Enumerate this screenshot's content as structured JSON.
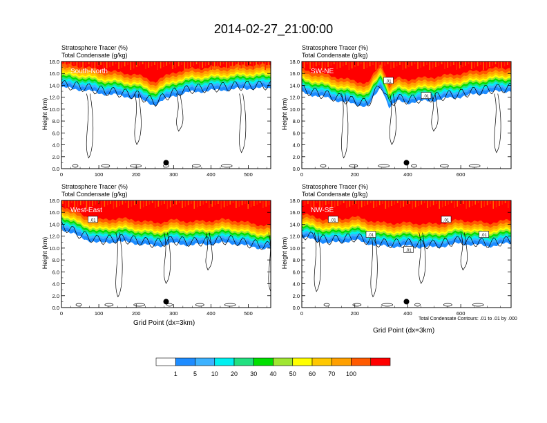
{
  "title": "2014-02-27_21:00:00",
  "panel_title_line1": "Stratosphere Tracer   (%)",
  "panel_title_line2": "Total Condensate   (g/kg)",
  "ylabel": "Height (km)",
  "xlabel": "Grid Point (dx=3km)",
  "contour_note": "Total Condensate Contours: .01 to .01 by .000",
  "colorbar": {
    "colors": [
      "#ffffff",
      "#1e8cff",
      "#3db2ff",
      "#00f0f0",
      "#22e080",
      "#00e000",
      "#a0e632",
      "#ffff00",
      "#ffc800",
      "#ffa000",
      "#ff5a00",
      "#ff0000"
    ],
    "labels": [
      "1",
      "5",
      "10",
      "20",
      "30",
      "40",
      "50",
      "60",
      "70",
      "100"
    ]
  },
  "chart_data": [
    {
      "type": "heatmap",
      "panel": "South-North",
      "xlim": [
        0,
        560
      ],
      "xticks": [
        0,
        100,
        200,
        300,
        400,
        500
      ],
      "ylim": [
        0,
        18
      ],
      "yticks": [
        "0.0",
        "2.0",
        "4.0",
        "6.0",
        "8.0",
        "10.0",
        "12.0",
        "14.0",
        "16.0",
        "18.0"
      ],
      "stratosphere_tracer_level_km": {
        "x": [
          0,
          50,
          100,
          150,
          200,
          250,
          300,
          350,
          400,
          450,
          500,
          550
        ],
        "y": [
          15.3,
          15.0,
          14.4,
          14.0,
          13.6,
          12.4,
          14.0,
          14.6,
          14.8,
          15.0,
          15.2,
          15.2
        ]
      },
      "contour_labels": [],
      "marker": {
        "x": 280,
        "y": 1.0
      }
    },
    {
      "type": "heatmap",
      "panel": "SW-NE",
      "xlim": [
        0,
        790
      ],
      "xticks": [
        0,
        200,
        400,
        600
      ],
      "ylim": [
        0,
        18
      ],
      "yticks": [
        "0.0",
        "2.0",
        "4.0",
        "6.0",
        "8.0",
        "10.0",
        "12.0",
        "14.0",
        "16.0",
        "18.0"
      ],
      "stratosphere_tracer_level_km": {
        "x": [
          0,
          100,
          200,
          250,
          300,
          330,
          360,
          400,
          500,
          600,
          700,
          790
        ],
        "y": [
          14.5,
          13.5,
          12.5,
          12.2,
          15.5,
          12.0,
          13.0,
          12.8,
          13.2,
          13.8,
          14.5,
          14.8
        ]
      },
      "contour_labels": [
        ".01",
        ".01"
      ],
      "marker": {
        "x": 395,
        "y": 1.0
      }
    },
    {
      "type": "heatmap",
      "panel": "West-East",
      "xlim": [
        0,
        560
      ],
      "xticks": [
        0,
        100,
        200,
        300,
        400,
        500
      ],
      "ylim": [
        0,
        18
      ],
      "yticks": [
        "0.0",
        "2.0",
        "4.0",
        "6.0",
        "8.0",
        "10.0",
        "12.0",
        "14.0",
        "16.0",
        "18.0"
      ],
      "stratosphere_tracer_level_km": {
        "x": [
          0,
          50,
          100,
          150,
          200,
          250,
          300,
          350,
          400,
          450,
          500,
          560
        ],
        "y": [
          15.0,
          13.5,
          12.5,
          12.8,
          12.5,
          12.0,
          12.5,
          12.2,
          12.4,
          12.6,
          12.0,
          11.5
        ]
      },
      "contour_labels": [
        ".01"
      ],
      "marker": {
        "x": 280,
        "y": 1.0
      }
    },
    {
      "type": "heatmap",
      "panel": "NW-SE",
      "xlim": [
        0,
        790
      ],
      "xticks": [
        0,
        200,
        400,
        600
      ],
      "ylim": [
        0,
        18
      ],
      "yticks": [
        "0.0",
        "2.0",
        "4.0",
        "6.0",
        "8.0",
        "10.0",
        "12.0",
        "14.0",
        "16.0",
        "18.0"
      ],
      "stratosphere_tracer_level_km": {
        "x": [
          0,
          100,
          200,
          300,
          400,
          500,
          600,
          700,
          790
        ],
        "y": [
          13.5,
          12.5,
          13.0,
          12.0,
          12.0,
          11.8,
          12.5,
          12.0,
          12.5
        ]
      },
      "contour_labels": [
        ".01",
        ".01",
        ".01",
        ".01",
        ".01"
      ],
      "marker": {
        "x": 395,
        "y": 1.0
      }
    }
  ]
}
